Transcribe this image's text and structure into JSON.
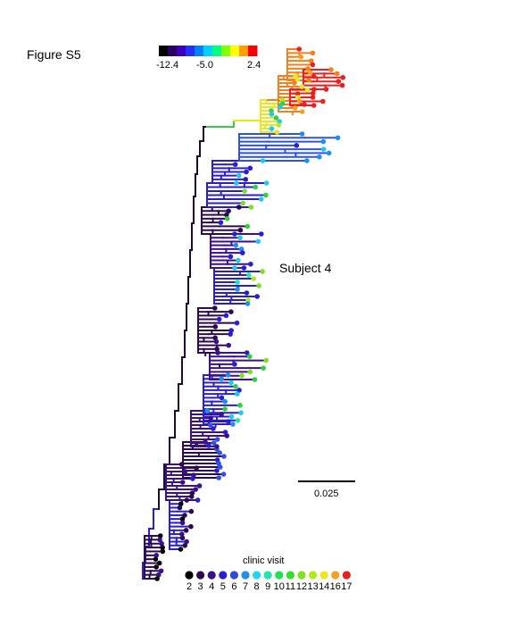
{
  "figure_title": "Figure S5",
  "subject_label": "Subject 4",
  "scale_bar_label": "0.025",
  "colorbar": {
    "tick_labels": [
      "-12.4",
      "-5.0",
      "2.4"
    ],
    "colors": [
      "#000000",
      "#2a0060",
      "#3a00c0",
      "#2030ff",
      "#0080ff",
      "#00d0ff",
      "#00ff80",
      "#80ff00",
      "#ffff00",
      "#ffa000",
      "#ff0000"
    ]
  },
  "legend": {
    "title": "clinic visit",
    "visits": [
      "2",
      "3",
      "4",
      "5",
      "6",
      "7",
      "8",
      "9",
      "10",
      "11",
      "12",
      "13",
      "14",
      "16",
      "17"
    ],
    "colors": [
      "#000000",
      "#2d0a4e",
      "#3a1090",
      "#2a1fd0",
      "#2e4ad6",
      "#1e8ef0",
      "#22d2f0",
      "#22e6a8",
      "#22e050",
      "#33e030",
      "#7fe020",
      "#b5e81c",
      "#f0e61c",
      "#f5a020",
      "#e82020"
    ]
  },
  "tree_colors": {
    "trunk": "#1c0a30",
    "deep_purple": "#2d0a4e",
    "purple": "#3a1090",
    "blue": "#2a1fd0",
    "blue_light": "#3050e0",
    "cyan": "#22c8e8",
    "green": "#30d040",
    "yellow": "#e8e820",
    "orange": "#f08020",
    "red": "#e82020"
  }
}
